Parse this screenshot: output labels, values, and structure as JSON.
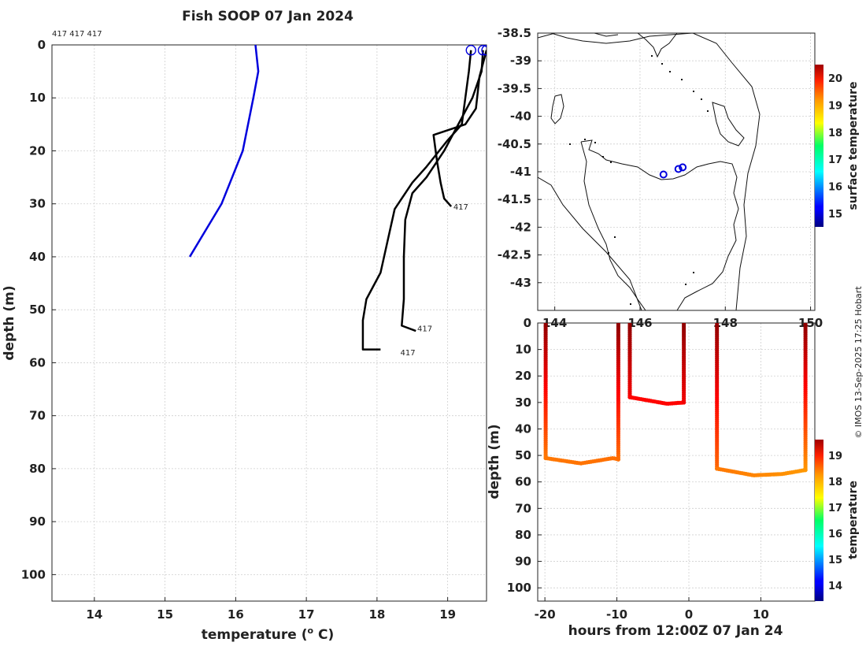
{
  "chart_data": [
    {
      "type": "line",
      "title": "Fish SOOP 07 Jan 2024",
      "subtitle": "417 417 417",
      "xlabel": "temperature (o C)",
      "xlabel_base": "temperature (",
      "xlabel_sup": "o",
      "xlabel_tail": " C)",
      "ylabel": "depth (m)",
      "xlim": [
        13.4,
        19.55
      ],
      "ylim": [
        105,
        0
      ],
      "xticks": [
        14,
        15,
        16,
        17,
        18,
        19
      ],
      "yticks": [
        0,
        10,
        20,
        30,
        40,
        50,
        60,
        70,
        80,
        90,
        100
      ],
      "climatology": {
        "name": "climatology",
        "color": "#0000dd",
        "points": [
          [
            16.28,
            0
          ],
          [
            16.32,
            5
          ],
          [
            16.25,
            10
          ],
          [
            16.1,
            20
          ],
          [
            15.8,
            30
          ],
          [
            15.35,
            40
          ]
        ]
      },
      "profiles": [
        {
          "name": "417",
          "label": "417",
          "label_at": [
            19.08,
            30.5
          ],
          "color": "#000000",
          "points": [
            [
              19.5,
              1
            ],
            [
              19.48,
              5
            ],
            [
              19.35,
              10
            ],
            [
              19.15,
              15
            ],
            [
              18.95,
              20
            ],
            [
              18.7,
              25
            ],
            [
              18.5,
              28
            ],
            [
              18.4,
              33
            ],
            [
              18.38,
              40
            ],
            [
              18.38,
              48
            ],
            [
              18.35,
              53
            ],
            [
              18.55,
              54
            ]
          ]
        },
        {
          "name": "417",
          "label": "417",
          "label_at": [
            18.33,
            58
          ],
          "color": "#000000",
          "points": [
            [
              19.33,
              1
            ],
            [
              19.3,
              5
            ],
            [
              19.25,
              10
            ],
            [
              19.2,
              15
            ],
            [
              19.0,
              18
            ],
            [
              18.7,
              23
            ],
            [
              18.5,
              26
            ],
            [
              18.25,
              31
            ],
            [
              18.15,
              37
            ],
            [
              18.05,
              43
            ],
            [
              17.85,
              48
            ],
            [
              17.8,
              52
            ],
            [
              17.8,
              57.5
            ],
            [
              18.05,
              57.5
            ]
          ]
        },
        {
          "name": "417",
          "label": "417",
          "label_at": [
            18.57,
            53.5
          ],
          "color": "#000000",
          "points": [
            [
              19.55,
              1
            ],
            [
              19.45,
              6
            ],
            [
              19.4,
              12
            ],
            [
              19.25,
              15
            ],
            [
              18.8,
              17
            ],
            [
              18.85,
              22
            ],
            [
              18.9,
              26
            ],
            [
              18.95,
              29
            ],
            [
              19.05,
              30.5
            ]
          ]
        }
      ]
    },
    {
      "type": "map",
      "xlim": [
        143.6,
        150.1
      ],
      "ylim": [
        -43.5,
        -38.5
      ],
      "xticks": [
        144,
        146,
        148,
        150
      ],
      "yticks": [
        -38.5,
        -39,
        -39.5,
        -40,
        -40.5,
        -41,
        -41.5,
        -42,
        -42.5,
        -43
      ],
      "xtick_labels": [
        "144",
        "146",
        "148",
        "150"
      ],
      "ytick_labels": [
        "-38.5",
        "-39",
        "-39.5",
        "-40",
        "-40.5",
        "-41",
        "-41.5",
        "-42",
        "-42.5",
        "-43"
      ],
      "stations": [
        [
          146.55,
          -41.05
        ],
        [
          146.9,
          -40.95
        ],
        [
          147.0,
          -40.92
        ]
      ],
      "colorbar": {
        "label": "surface temperature",
        "range": [
          14.5,
          20.5
        ],
        "ticks": [
          15,
          16,
          17,
          18,
          19,
          20
        ]
      }
    },
    {
      "type": "scatter",
      "xlabel": "hours from 12:00Z 07 Jan 24",
      "ylabel": "depth (m)",
      "xlim": [
        -21,
        17.5
      ],
      "ylim": [
        105,
        0
      ],
      "xticks": [
        -20,
        -10,
        0,
        10
      ],
      "yticks": [
        0,
        10,
        20,
        30,
        40,
        50,
        60,
        70,
        80,
        90,
        100
      ],
      "segments": [
        {
          "name": "cast-1-descent",
          "points": [
            [
              -19.9,
              0
            ],
            [
              -19.9,
              51
            ]
          ],
          "t0": 19.5,
          "t1": 18.1
        },
        {
          "name": "cast-1-bottom",
          "points": [
            [
              -19.9,
              51
            ],
            [
              -15,
              53
            ],
            [
              -10.5,
              51
            ],
            [
              -9.8,
              51.5
            ]
          ],
          "t0": 18.1,
          "t1": 18.15
        },
        {
          "name": "cast-1-ascent",
          "points": [
            [
              -9.8,
              51.5
            ],
            [
              -9.8,
              0
            ]
          ],
          "t0": 18.15,
          "t1": 19.5
        },
        {
          "name": "cast-2-descent",
          "points": [
            [
              -8.2,
              0
            ],
            [
              -8.2,
              28
            ]
          ],
          "t0": 19.5,
          "t1": 18.9
        },
        {
          "name": "cast-2-bottom",
          "points": [
            [
              -8.2,
              28
            ],
            [
              -3,
              30.5
            ],
            [
              -0.7,
              30
            ]
          ],
          "t0": 18.8,
          "t1": 18.8
        },
        {
          "name": "cast-2-ascent",
          "points": [
            [
              -0.7,
              30
            ],
            [
              -0.7,
              0
            ]
          ],
          "t0": 18.9,
          "t1": 19.5
        },
        {
          "name": "cast-3-descent",
          "points": [
            [
              3.9,
              0
            ],
            [
              3.9,
              55
            ]
          ],
          "t0": 19.5,
          "t1": 18.2
        },
        {
          "name": "cast-3-bottom",
          "points": [
            [
              3.9,
              55
            ],
            [
              9,
              57.5
            ],
            [
              13,
              57
            ],
            [
              16.2,
              55.5
            ]
          ],
          "t0": 18.1,
          "t1": 17.9
        },
        {
          "name": "cast-3-ascent",
          "points": [
            [
              16.2,
              55.5
            ],
            [
              16.2,
              0
            ]
          ],
          "t0": 17.9,
          "t1": 19.5
        }
      ],
      "colorbar": {
        "label": "temperature",
        "range": [
          13.4,
          19.6
        ],
        "ticks": [
          14,
          15,
          16,
          17,
          18,
          19
        ]
      }
    }
  ],
  "credit": "© IMOS 13-Sep-2025 17:25 Hobart"
}
